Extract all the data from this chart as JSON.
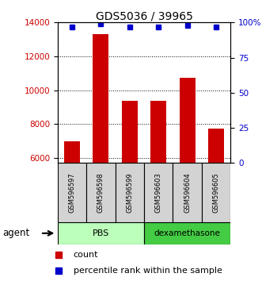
{
  "title": "GDS5036 / 39965",
  "samples": [
    "GSM596597",
    "GSM596598",
    "GSM596599",
    "GSM596603",
    "GSM596604",
    "GSM596605"
  ],
  "counts": [
    7000,
    13300,
    9350,
    9350,
    10750,
    7750
  ],
  "percentile_ranks": [
    97,
    99,
    97,
    97,
    98,
    97
  ],
  "y_min": 5700,
  "y_max": 14000,
  "y_ticks": [
    6000,
    8000,
    10000,
    12000,
    14000
  ],
  "bar_color": "#cc0000",
  "dot_color": "#0000cc",
  "pbs_color": "#bbffbb",
  "dex_color": "#44cc44",
  "agent_label": "agent",
  "legend_count_label": "count",
  "legend_pct_label": "percentile rank within the sample"
}
